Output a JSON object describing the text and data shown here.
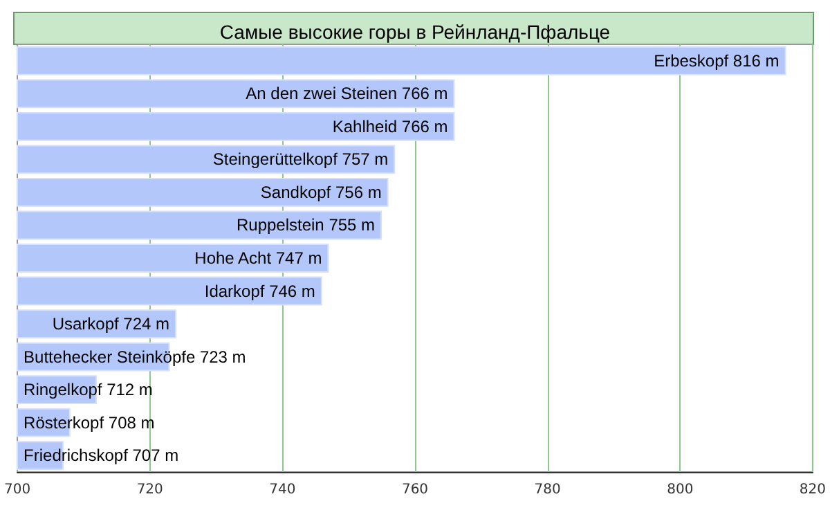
{
  "chart_data": {
    "type": "bar",
    "orientation": "horizontal",
    "title": "Самые высокие горы в Рейнланд-Пфальце",
    "categories": [
      null,
      null,
      null,
      null,
      null,
      null,
      null,
      null,
      null,
      null,
      null,
      null,
      null
    ],
    "values": [
      816,
      766,
      766,
      757,
      756,
      755,
      747,
      746,
      724,
      723,
      712,
      708,
      707
    ],
    "value_labels": [
      "Erbeskopf 816 m",
      "An den zwei Steinen 766 m",
      "Kahlheid 766 m",
      "Steingerüttelkopf 757 m",
      "Sandkopf 756 m",
      "Ruppelstein 755 m",
      "Hohe Acht 747 m",
      "Idarkopf 746 m",
      "Usarkopf 724 m",
      "Buttehecker Steinköpfe 723 m",
      "Ringelkopf 712 m",
      "Rösterkopf 708 m",
      "Friedrichskopf 707 m"
    ],
    "color": "#b3c7fb",
    "xlim": [
      700,
      820
    ],
    "xticks": [
      700,
      720,
      740,
      760,
      780,
      800,
      820
    ],
    "grid": "x",
    "tick_labels": "x"
  }
}
